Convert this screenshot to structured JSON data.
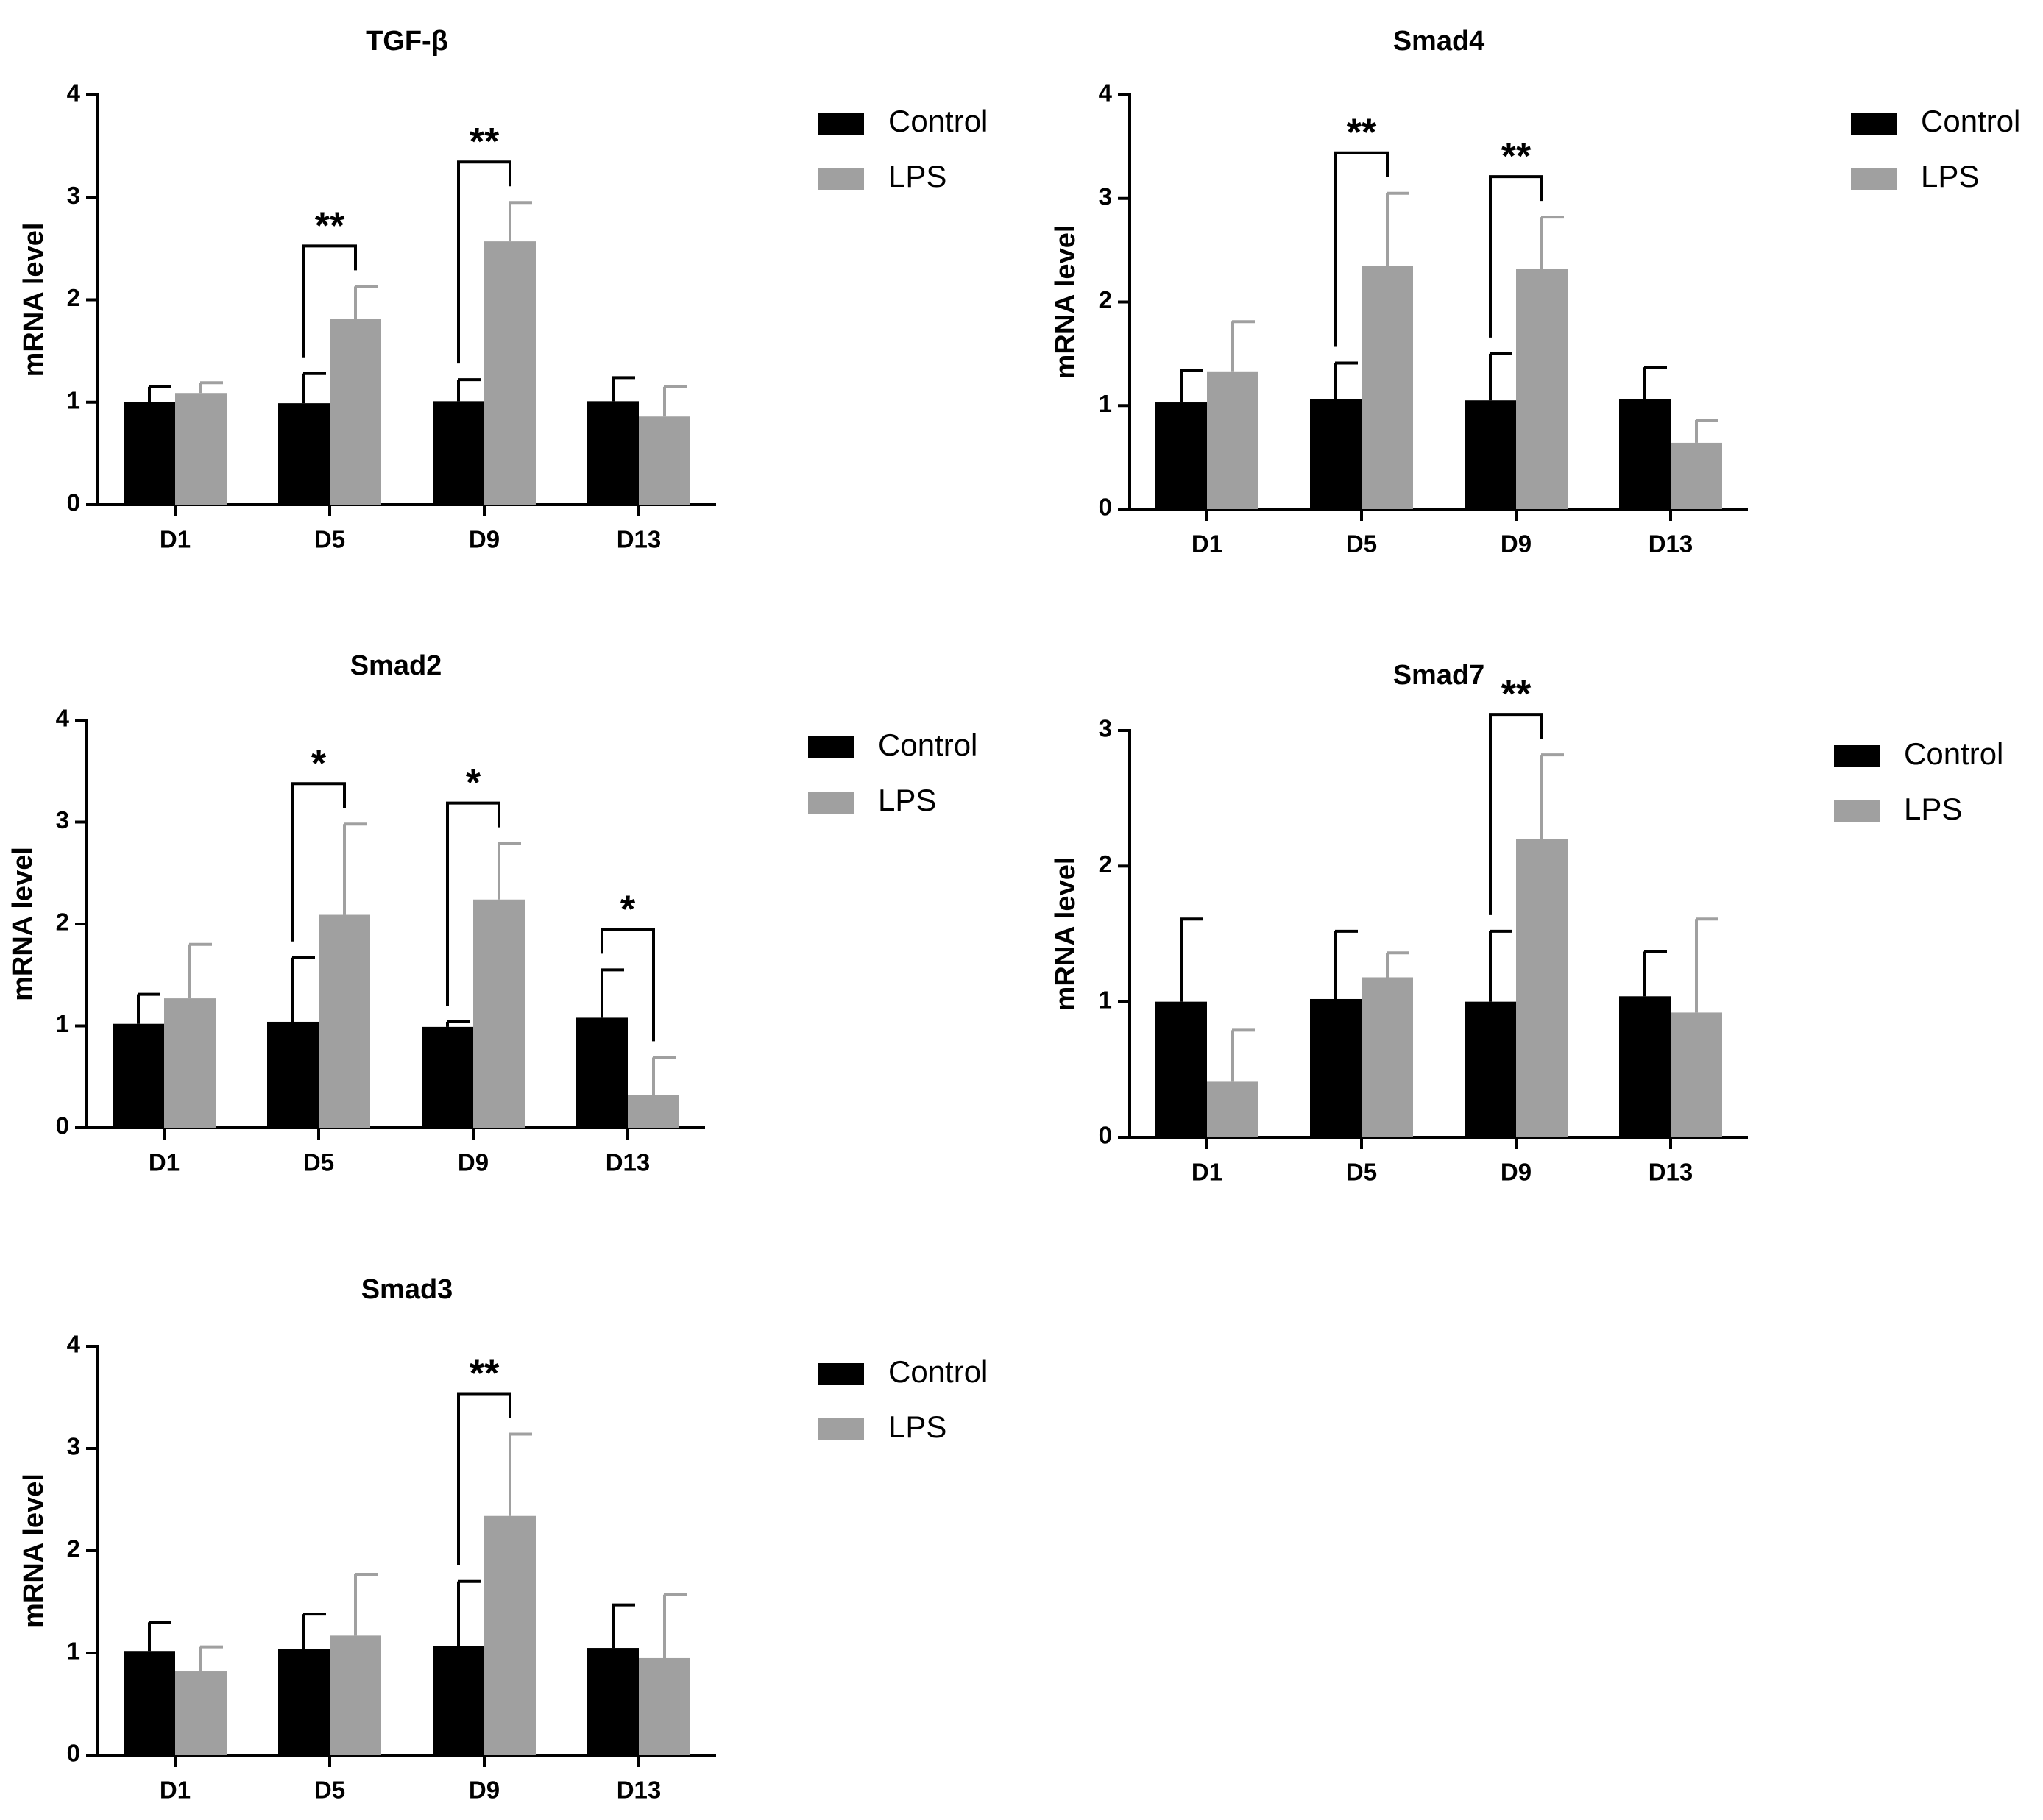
{
  "chart_data": [
    {
      "type": "bar",
      "title": "TGF-β",
      "xlabel": "",
      "ylabel": "mRNA level",
      "ylim": [
        0,
        4
      ],
      "yticks": [
        "0",
        "1",
        "2",
        "3",
        "4"
      ],
      "categories": [
        "D1",
        "D5",
        "D9",
        "D13"
      ],
      "series": [
        {
          "name": "Control",
          "color": "#000000",
          "values": [
            1.0,
            0.99,
            1.01,
            1.01
          ],
          "errors": [
            0.15,
            0.29,
            0.21,
            0.23
          ]
        },
        {
          "name": "LPS",
          "color": "#a0a0a0",
          "values": [
            1.09,
            1.81,
            2.57,
            0.86
          ],
          "errors": [
            0.1,
            0.32,
            0.38,
            0.29
          ]
        }
      ],
      "significance": [
        {
          "category": "D5",
          "label": "**"
        },
        {
          "category": "D9",
          "label": "**"
        }
      ]
    },
    {
      "type": "bar",
      "title": "Smad4",
      "xlabel": "",
      "ylabel": "mRNA level",
      "ylim": [
        0,
        4
      ],
      "yticks": [
        "0",
        "1",
        "2",
        "3",
        "4"
      ],
      "categories": [
        "D1",
        "D5",
        "D9",
        "D13"
      ],
      "series": [
        {
          "name": "Control",
          "color": "#000000",
          "values": [
            1.03,
            1.06,
            1.05,
            1.06
          ],
          "errors": [
            0.31,
            0.35,
            0.45,
            0.31
          ]
        },
        {
          "name": "LPS",
          "color": "#a0a0a0",
          "values": [
            1.33,
            2.35,
            2.32,
            0.64
          ],
          "errors": [
            0.48,
            0.7,
            0.5,
            0.22
          ]
        }
      ],
      "significance": [
        {
          "category": "D5",
          "label": "**"
        },
        {
          "category": "D9",
          "label": "**"
        }
      ]
    },
    {
      "type": "bar",
      "title": "Smad2",
      "xlabel": "",
      "ylabel": "mRNA level",
      "ylim": [
        0,
        4
      ],
      "yticks": [
        "0",
        "1",
        "2",
        "3",
        "4"
      ],
      "categories": [
        "D1",
        "D5",
        "D9",
        "D13"
      ],
      "series": [
        {
          "name": "Control",
          "color": "#000000",
          "values": [
            1.02,
            1.04,
            0.99,
            1.08
          ],
          "errors": [
            0.29,
            0.63,
            0.05,
            0.47
          ]
        },
        {
          "name": "LPS",
          "color": "#a0a0a0",
          "values": [
            1.27,
            2.09,
            2.24,
            0.32
          ],
          "errors": [
            0.53,
            0.89,
            0.55,
            0.37
          ]
        }
      ],
      "significance": [
        {
          "category": "D5",
          "label": "*"
        },
        {
          "category": "D9",
          "label": "*"
        },
        {
          "category": "D13",
          "label": "*"
        }
      ]
    },
    {
      "type": "bar",
      "title": "Smad7",
      "xlabel": "",
      "ylabel": "mRNA level",
      "ylim": [
        0,
        3
      ],
      "yticks": [
        "0",
        "1",
        "2",
        "3"
      ],
      "categories": [
        "D1",
        "D5",
        "D9",
        "D13"
      ],
      "series": [
        {
          "name": "Control",
          "color": "#000000",
          "values": [
            1.0,
            1.02,
            1.0,
            1.04
          ],
          "errors": [
            0.61,
            0.5,
            0.52,
            0.33
          ]
        },
        {
          "name": "LPS",
          "color": "#a0a0a0",
          "values": [
            0.41,
            1.18,
            2.2,
            0.92
          ],
          "errors": [
            0.38,
            0.18,
            0.62,
            0.69
          ]
        }
      ],
      "significance": [
        {
          "category": "D9",
          "label": "**"
        }
      ]
    },
    {
      "type": "bar",
      "title": "Smad3",
      "xlabel": "",
      "ylabel": "mRNA level",
      "ylim": [
        0,
        4
      ],
      "yticks": [
        "0",
        "1",
        "2",
        "3",
        "4"
      ],
      "categories": [
        "D1",
        "D5",
        "D9",
        "D13"
      ],
      "series": [
        {
          "name": "Control",
          "color": "#000000",
          "values": [
            1.02,
            1.04,
            1.07,
            1.05
          ],
          "errors": [
            0.28,
            0.34,
            0.63,
            0.42
          ]
        },
        {
          "name": "LPS",
          "color": "#a0a0a0",
          "values": [
            0.82,
            1.17,
            2.34,
            0.95
          ],
          "errors": [
            0.24,
            0.6,
            0.8,
            0.62
          ]
        }
      ],
      "significance": [
        {
          "category": "D9",
          "label": "**"
        }
      ]
    }
  ]
}
